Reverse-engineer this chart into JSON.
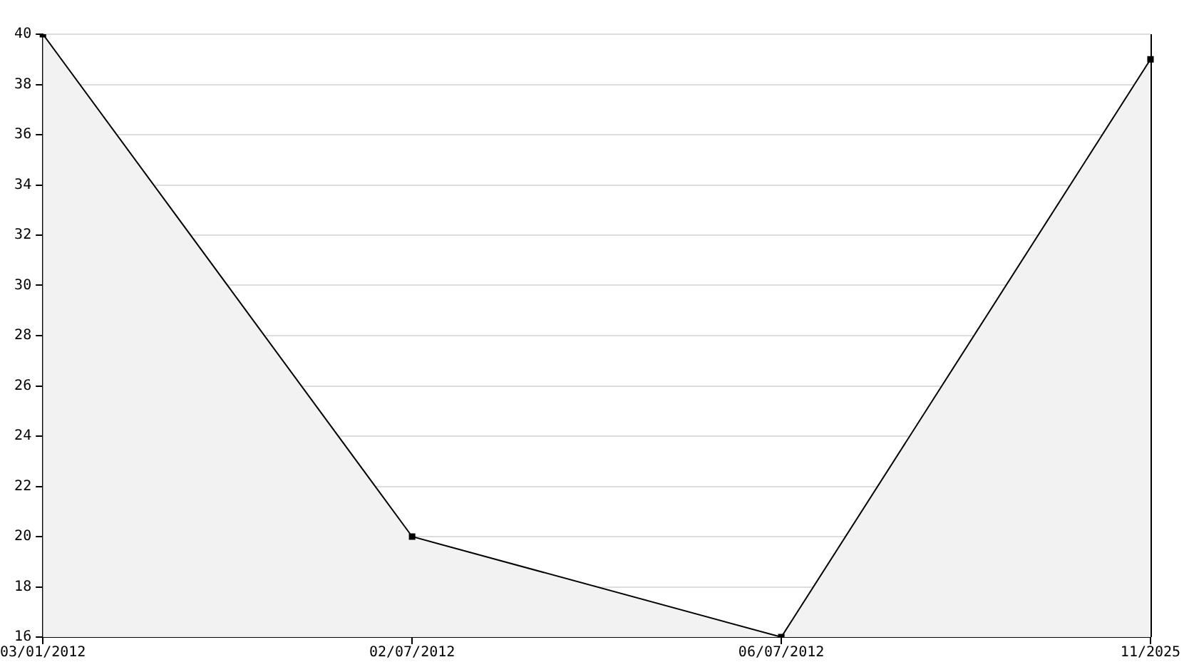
{
  "chart_data": {
    "type": "area",
    "categories": [
      "03/01/2012",
      "02/07/2012",
      "06/07/2012",
      "11/2025"
    ],
    "series": [
      {
        "color": "#000000",
        "values": [
          40,
          20,
          16,
          39
        ]
      }
    ],
    "ylim": [
      16,
      40
    ],
    "yticks": [
      16,
      18,
      20,
      22,
      24,
      26,
      28,
      30,
      32,
      34,
      36,
      38,
      40
    ],
    "grid": "y",
    "marker": "square",
    "legend": false
  }
}
